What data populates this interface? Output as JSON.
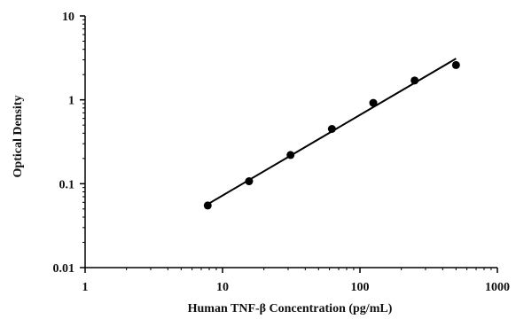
{
  "chart_data": {
    "type": "scatter",
    "title": "",
    "xlabel": "Human TNF-β Concentration (pg/mL)",
    "ylabel": "Optical Density",
    "x_scale": "log",
    "y_scale": "log",
    "xlim": [
      1,
      1000
    ],
    "ylim": [
      0.01,
      10
    ],
    "x_ticks": [
      "1",
      "10",
      "100",
      "1000"
    ],
    "y_ticks": [
      "0.01",
      "0.1",
      "1",
      "10"
    ],
    "grid": false,
    "legend": "none",
    "series": [
      {
        "points": [
          {
            "x": 7.8,
            "y": 0.055
          },
          {
            "x": 15.6,
            "y": 0.107
          },
          {
            "x": 31.25,
            "y": 0.22
          },
          {
            "x": 62.5,
            "y": 0.45
          },
          {
            "x": 125,
            "y": 0.92
          },
          {
            "x": 250,
            "y": 1.7
          },
          {
            "x": 500,
            "y": 2.6
          }
        ]
      }
    ],
    "fit_line": {
      "x": [
        7.8,
        500
      ],
      "y": [
        0.057,
        3.1
      ]
    },
    "colors": {
      "marker": "#000000",
      "line": "#000000",
      "axis": "#000000"
    }
  }
}
